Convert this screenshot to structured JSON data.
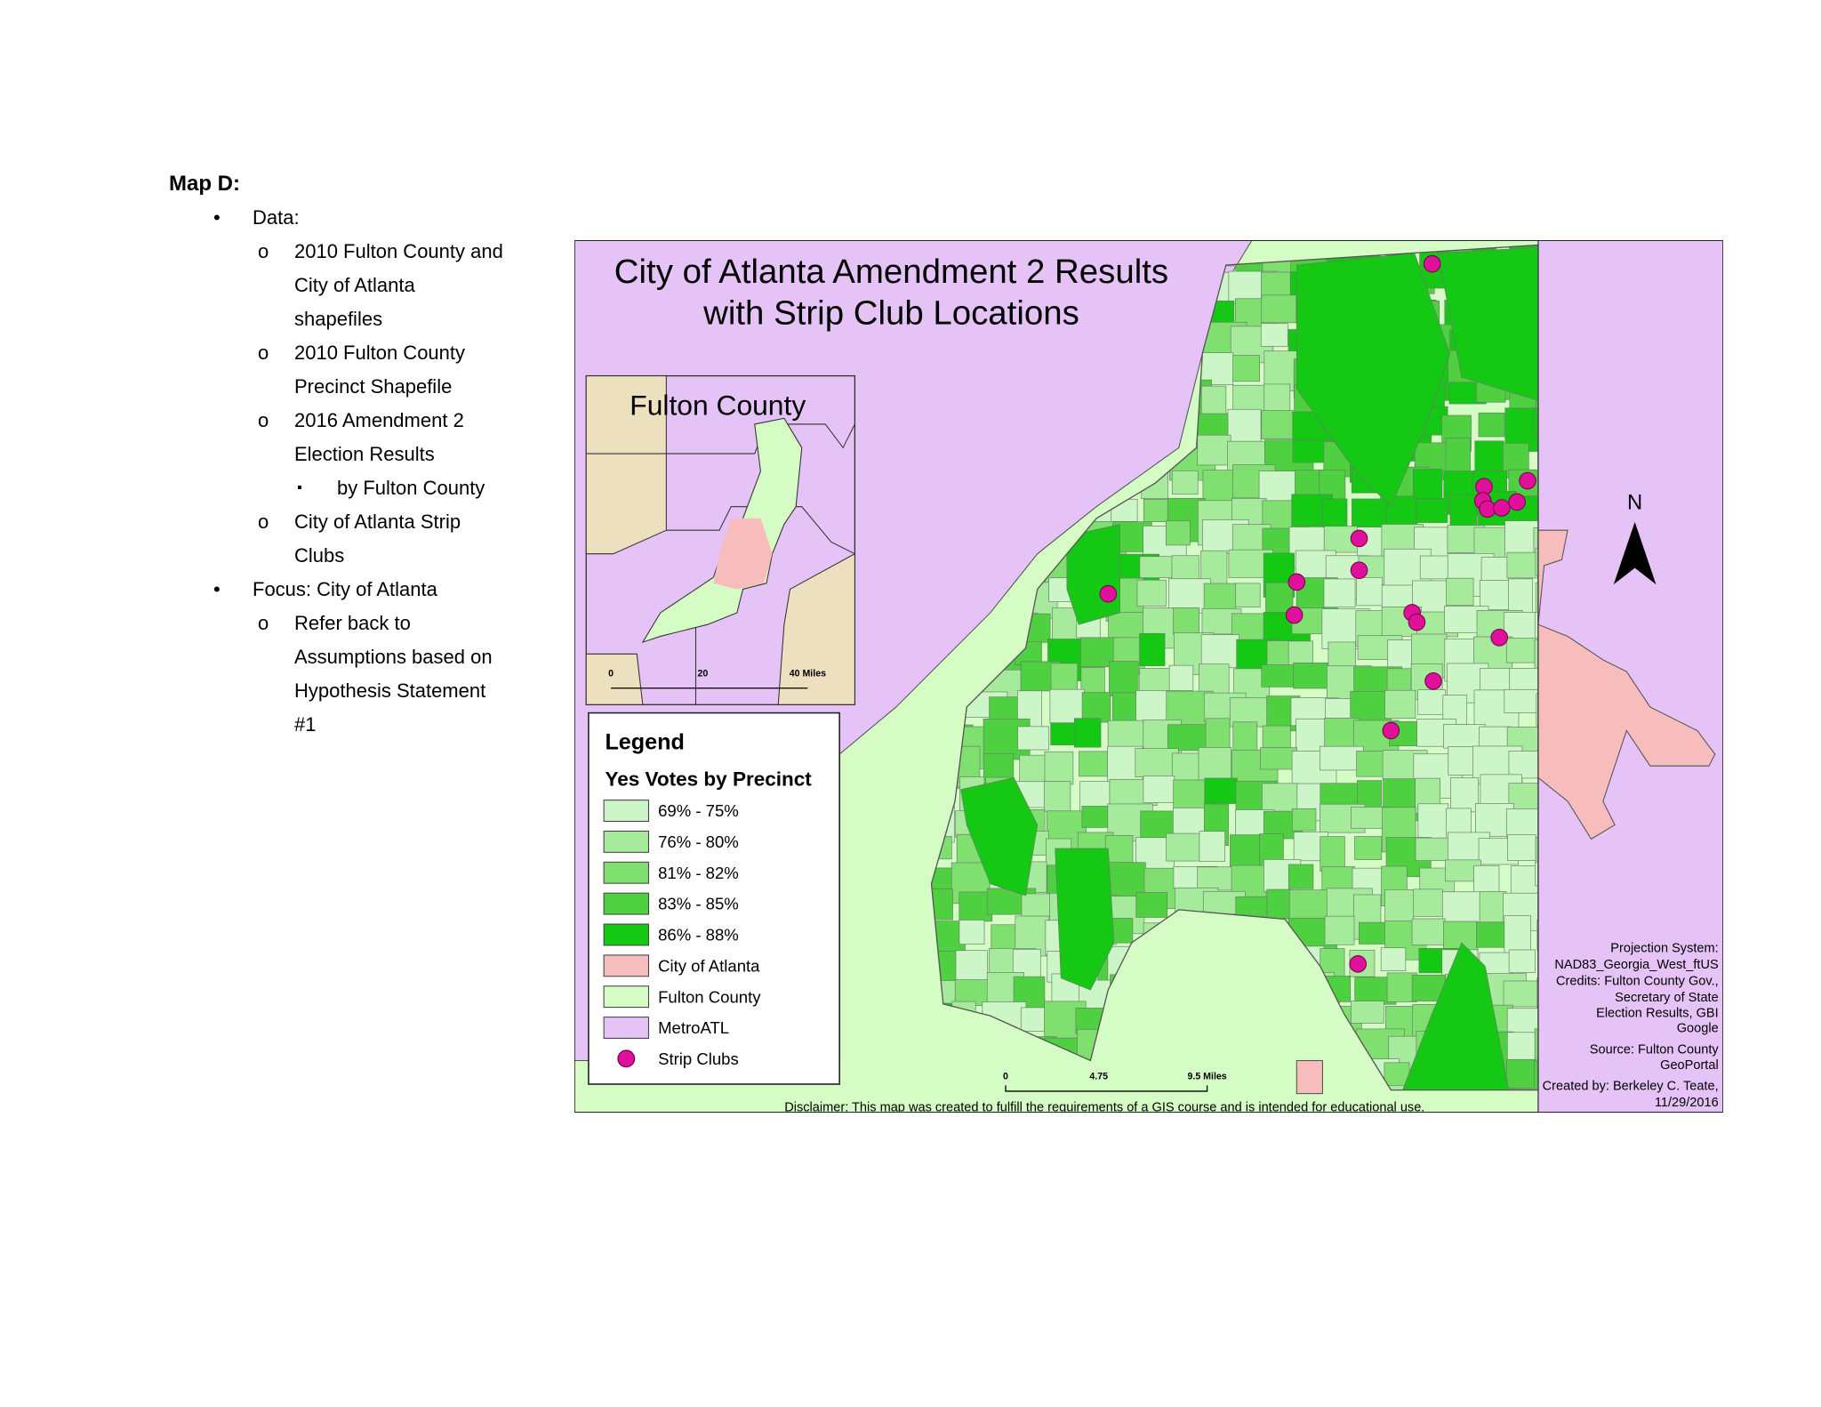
{
  "heading": "Map D:",
  "outline": [
    {
      "text": "Data:",
      "items": [
        {
          "text": "2010 Fulton County and City of Atlanta shapefiles"
        },
        {
          "text": "2010 Fulton County Precinct Shapefile"
        },
        {
          "text": "2016 Amendment 2 Election Results",
          "items": [
            {
              "text": "by Fulton County"
            }
          ]
        },
        {
          "text": "City of Atlanta Strip Clubs"
        }
      ]
    },
    {
      "text": "Focus: City of Atlanta",
      "items": [
        {
          "text": "Refer back to Assumptions based on Hypothesis Statement #1"
        }
      ]
    }
  ],
  "map": {
    "title": [
      "City of Atlanta Amendment 2 Results",
      "with Strip Club Locations"
    ],
    "inset": {
      "title": "Fulton County",
      "scale_labels": [
        "0",
        "20",
        "40 Miles"
      ]
    },
    "legend": {
      "title": "Legend",
      "subtitle": "Yes Votes by Precinct",
      "items": [
        {
          "label": "69% - 75%",
          "color": "#ccf5c8"
        },
        {
          "label": "76% - 80%",
          "color": "#a6eb9c"
        },
        {
          "label": "81% - 82%",
          "color": "#7fe070"
        },
        {
          "label": "83% - 85%",
          "color": "#4fd040"
        },
        {
          "label": "86% - 88%",
          "color": "#14c814"
        },
        {
          "label": "City of Atlanta",
          "color": "#f7bcbc"
        },
        {
          "label": "Fulton County",
          "color": "#d6fcc6"
        },
        {
          "label": "MetroATL",
          "color": "#e6c3f7"
        },
        {
          "label": "Strip Clubs",
          "color": "#e0109a",
          "marker": "circle"
        }
      ]
    },
    "scale_labels": [
      "0",
      "4.75",
      "9.5 Miles"
    ],
    "north": "N",
    "credits": [
      "Projection System:",
      "NAD83_Georgia_West_ftUS",
      "Credits: Fulton County Gov.,",
      "Secretary of State",
      "Election Results, GBI",
      "Google",
      "Source: Fulton County",
      "GeoPortal",
      "Created by: Berkeley C. Teate,",
      "11/29/2016"
    ],
    "disclaimer": "Disclaimer: This map was created to fulfill the requirements of a GIS course and is intended for educational use."
  }
}
